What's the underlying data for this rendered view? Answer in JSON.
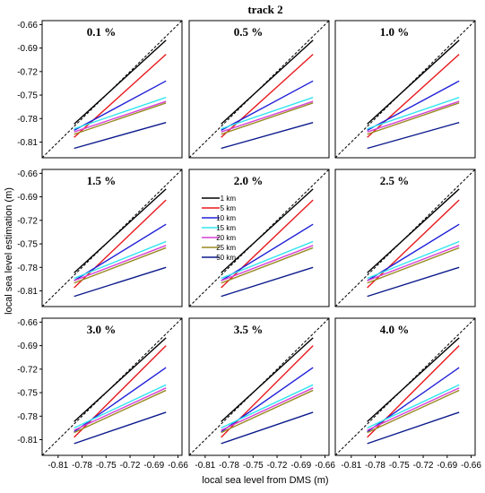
{
  "figure": {
    "title": "track 2",
    "xlabel": "local sea level from DMS (m)",
    "ylabel": "local sea level estimation (m)"
  },
  "chart_data": {
    "type": "line",
    "title": "track 2",
    "xlabel": "local sea level from DMS (m)",
    "ylabel": "local sea level estimation (m)",
    "xlim": [
      -0.83,
      -0.655
    ],
    "ylim": [
      -0.83,
      -0.655
    ],
    "xticks": [
      "-0.81",
      "-0.78",
      "-0.75",
      "-0.72",
      "-0.69",
      "-0.66"
    ],
    "yticks": [
      "-0.66",
      "-0.69",
      "-0.72",
      "-0.75",
      "-0.78",
      "-0.81"
    ],
    "grid": false,
    "legend_location": "middle panel, top-left",
    "reference_line": "1:1 dashed",
    "series_legend": [
      {
        "name": "1 km",
        "color": "#000000"
      },
      {
        "name": "5 km",
        "color": "#e8191d"
      },
      {
        "name": "10 km",
        "color": "#2020d8"
      },
      {
        "name": "15 km",
        "color": "#33e6ee"
      },
      {
        "name": "20 km",
        "color": "#d640d6"
      },
      {
        "name": "25 km",
        "color": "#9a8a22"
      },
      {
        "name": "50 km",
        "color": "#0c1a8c"
      }
    ],
    "x_range": [
      -0.79,
      -0.675
    ],
    "panels": [
      {
        "label": "0.1 %",
        "series": [
          [
            -0.787,
            -0.68
          ],
          [
            -0.804,
            -0.698
          ],
          [
            -0.795,
            -0.732
          ],
          [
            -0.793,
            -0.753
          ],
          [
            -0.797,
            -0.758
          ],
          [
            -0.8,
            -0.76
          ],
          [
            -0.818,
            -0.785
          ]
        ]
      },
      {
        "label": "0.5 %",
        "series": [
          [
            -0.787,
            -0.68
          ],
          [
            -0.804,
            -0.698
          ],
          [
            -0.795,
            -0.732
          ],
          [
            -0.793,
            -0.753
          ],
          [
            -0.797,
            -0.758
          ],
          [
            -0.8,
            -0.76
          ],
          [
            -0.818,
            -0.785
          ]
        ]
      },
      {
        "label": "1.0 %",
        "series": [
          [
            -0.787,
            -0.68
          ],
          [
            -0.804,
            -0.698
          ],
          [
            -0.795,
            -0.732
          ],
          [
            -0.793,
            -0.753
          ],
          [
            -0.797,
            -0.758
          ],
          [
            -0.8,
            -0.76
          ],
          [
            -0.818,
            -0.785
          ]
        ]
      },
      {
        "label": "1.5 %",
        "series": [
          [
            -0.787,
            -0.68
          ],
          [
            -0.806,
            -0.694
          ],
          [
            -0.797,
            -0.725
          ],
          [
            -0.794,
            -0.747
          ],
          [
            -0.797,
            -0.752
          ],
          [
            -0.8,
            -0.755
          ],
          [
            -0.817,
            -0.78
          ]
        ]
      },
      {
        "label": "2.0 %",
        "series": [
          [
            -0.787,
            -0.68
          ],
          [
            -0.806,
            -0.694
          ],
          [
            -0.797,
            -0.725
          ],
          [
            -0.794,
            -0.747
          ],
          [
            -0.797,
            -0.752
          ],
          [
            -0.8,
            -0.755
          ],
          [
            -0.817,
            -0.78
          ]
        ]
      },
      {
        "label": "2.5 %",
        "series": [
          [
            -0.787,
            -0.68
          ],
          [
            -0.806,
            -0.694
          ],
          [
            -0.797,
            -0.725
          ],
          [
            -0.794,
            -0.747
          ],
          [
            -0.797,
            -0.752
          ],
          [
            -0.8,
            -0.755
          ],
          [
            -0.817,
            -0.78
          ]
        ]
      },
      {
        "label": "3.0 %",
        "series": [
          [
            -0.787,
            -0.68
          ],
          [
            -0.807,
            -0.69
          ],
          [
            -0.8,
            -0.718
          ],
          [
            -0.795,
            -0.74
          ],
          [
            -0.798,
            -0.744
          ],
          [
            -0.801,
            -0.747
          ],
          [
            -0.815,
            -0.775
          ]
        ]
      },
      {
        "label": "3.5 %",
        "series": [
          [
            -0.787,
            -0.68
          ],
          [
            -0.807,
            -0.69
          ],
          [
            -0.8,
            -0.718
          ],
          [
            -0.795,
            -0.74
          ],
          [
            -0.798,
            -0.744
          ],
          [
            -0.801,
            -0.747
          ],
          [
            -0.815,
            -0.775
          ]
        ]
      },
      {
        "label": "4.0 %",
        "series": [
          [
            -0.787,
            -0.68
          ],
          [
            -0.807,
            -0.69
          ],
          [
            -0.8,
            -0.718
          ],
          [
            -0.795,
            -0.74
          ],
          [
            -0.798,
            -0.744
          ],
          [
            -0.801,
            -0.747
          ],
          [
            -0.815,
            -0.775
          ]
        ]
      }
    ]
  }
}
